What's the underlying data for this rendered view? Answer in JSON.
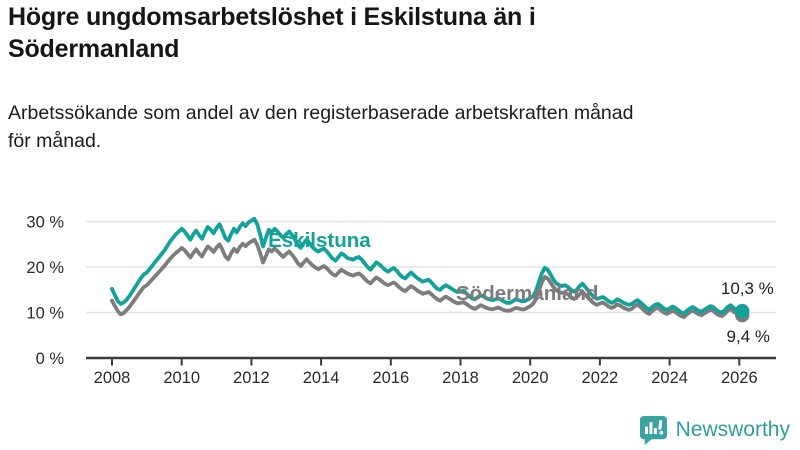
{
  "header": {
    "title": "Högre ungdomsarbetslöshet i Eskilstuna än i\nSödermanland",
    "subtitle": "Arbetssökande som andel av den registerbaserade arbetskraften månad\nför månad."
  },
  "chart_data": {
    "type": "line",
    "title": "Högre ungdomsarbetslöshet i Eskilstuna än i Södermanland",
    "subtitle": "Arbetssökande som andel av den registerbaserade arbetskraften månad för månad.",
    "unit": "%",
    "x_start_year": 2008,
    "x_interval_months": 1,
    "xlim": [
      2007.3,
      2027.1
    ],
    "ylim": [
      0,
      33
    ],
    "grid": true,
    "legend_position": "inline-labels",
    "y_ticks": [
      {
        "value": 0,
        "label": "0 %"
      },
      {
        "value": 10,
        "label": "10 %"
      },
      {
        "value": 20,
        "label": "20 %"
      },
      {
        "value": 30,
        "label": "30 %"
      }
    ],
    "x_ticks": [
      {
        "year": 2008,
        "label": "2008"
      },
      {
        "year": 2010,
        "label": "2010"
      },
      {
        "year": 2012,
        "label": "2012"
      },
      {
        "year": 2014,
        "label": "2014"
      },
      {
        "year": 2016,
        "label": "2016"
      },
      {
        "year": 2018,
        "label": "2018"
      },
      {
        "year": 2020,
        "label": "2020"
      },
      {
        "year": 2022,
        "label": "2022"
      },
      {
        "year": 2024,
        "label": "2024"
      },
      {
        "year": 2026,
        "label": "2026"
      }
    ],
    "series": [
      {
        "name": "Södermanland",
        "color": "#7d7d7d",
        "end_value": 9.4,
        "end_label": "9,4 %",
        "values": [
          12.6,
          11.4,
          10.3,
          9.6,
          9.9,
          10.5,
          11.2,
          12.1,
          13.0,
          13.9,
          14.8,
          15.6,
          16.0,
          16.7,
          17.4,
          18.1,
          18.8,
          19.5,
          20.2,
          21.0,
          21.8,
          22.5,
          23.1,
          23.6,
          24.2,
          23.7,
          22.9,
          22.1,
          23.1,
          23.9,
          23.0,
          22.3,
          23.5,
          24.5,
          24.0,
          23.3,
          24.3,
          25.0,
          23.8,
          22.3,
          21.7,
          23.0,
          24.0,
          23.3,
          24.4,
          25.1,
          24.6,
          25.2,
          25.6,
          26.0,
          24.9,
          23.1,
          21.0,
          22.4,
          23.9,
          23.4,
          24.1,
          23.5,
          22.8,
          22.2,
          22.9,
          23.4,
          22.7,
          21.8,
          20.8,
          20.2,
          21.0,
          21.7,
          21.0,
          20.4,
          19.9,
          19.5,
          19.9,
          20.2,
          19.7,
          19.0,
          18.4,
          18.1,
          18.8,
          19.4,
          19.0,
          18.6,
          18.3,
          18.1,
          18.4,
          18.6,
          18.1,
          17.4,
          16.8,
          16.4,
          17.1,
          17.7,
          17.3,
          16.8,
          16.3,
          16.0,
          16.3,
          16.6,
          16.1,
          15.5,
          15.0,
          14.7,
          15.3,
          15.8,
          15.4,
          14.9,
          14.5,
          14.1,
          14.3,
          14.5,
          14.0,
          13.4,
          12.9,
          12.6,
          13.1,
          13.5,
          13.1,
          12.7,
          12.3,
          12.0,
          12.1,
          12.3,
          11.9,
          11.4,
          11.0,
          10.8,
          11.2,
          11.6,
          11.3,
          11.0,
          10.8,
          10.7,
          10.9,
          11.1,
          10.8,
          10.5,
          10.4,
          10.4,
          10.7,
          11.0,
          10.9,
          10.7,
          10.7,
          11.0,
          11.4,
          11.9,
          13.0,
          14.8,
          16.6,
          17.8,
          17.5,
          16.6,
          15.6,
          14.9,
          14.5,
          14.3,
          14.4,
          14.0,
          13.4,
          13.0,
          13.3,
          14.0,
          14.5,
          13.9,
          13.2,
          12.5,
          12.0,
          11.7,
          12.0,
          12.2,
          11.8,
          11.3,
          11.0,
          11.3,
          11.8,
          11.5,
          11.1,
          10.8,
          10.6,
          10.8,
          11.4,
          11.7,
          11.2,
          10.6,
          10.0,
          9.7,
          10.3,
          10.8,
          11.0,
          10.5,
          10.0,
          9.7,
          10.0,
          10.4,
          10.1,
          9.6,
          9.2,
          9.0,
          9.6,
          10.1,
          10.4,
          10.0,
          9.6,
          9.4,
          9.8,
          10.2,
          10.6,
          10.4,
          9.8,
          9.4,
          9.2,
          9.7,
          10.4,
          10.8,
          10.2,
          9.8,
          9.6,
          9.4
        ]
      },
      {
        "name": "Eskilstuna",
        "color": "#12a29a",
        "end_value": 10.3,
        "end_label": "10,3 %",
        "values": [
          15.2,
          13.8,
          12.5,
          11.9,
          12.2,
          12.8,
          13.6,
          14.6,
          15.6,
          16.6,
          17.6,
          18.4,
          18.8,
          19.6,
          20.4,
          21.2,
          22.0,
          22.8,
          23.6,
          24.6,
          25.6,
          26.4,
          27.2,
          27.8,
          28.4,
          27.8,
          26.9,
          26.0,
          27.2,
          28.0,
          27.0,
          26.2,
          27.6,
          28.8,
          28.2,
          27.4,
          28.6,
          29.4,
          28.0,
          26.4,
          25.8,
          27.2,
          28.4,
          27.6,
          28.8,
          29.6,
          29.0,
          29.8,
          30.2,
          30.6,
          29.4,
          27.2,
          24.5,
          26.4,
          28.2,
          27.6,
          28.4,
          27.8,
          27.0,
          26.4,
          27.2,
          27.8,
          27.0,
          26.0,
          24.8,
          24.2,
          25.2,
          26.0,
          25.2,
          24.4,
          23.8,
          23.4,
          23.8,
          24.0,
          23.4,
          22.6,
          21.8,
          21.4,
          22.2,
          23.0,
          22.6,
          22.0,
          21.8,
          21.6,
          22.0,
          22.2,
          21.6,
          20.8,
          20.0,
          19.4,
          20.2,
          21.0,
          20.6,
          20.0,
          19.4,
          19.0,
          19.4,
          19.8,
          19.2,
          18.4,
          17.8,
          17.5,
          18.2,
          18.8,
          18.2,
          17.6,
          17.2,
          16.8,
          17.0,
          17.2,
          16.6,
          15.8,
          15.2,
          15.0,
          15.6,
          16.0,
          15.6,
          15.2,
          14.8,
          14.5,
          14.6,
          14.8,
          14.2,
          13.6,
          13.1,
          12.9,
          13.4,
          13.8,
          13.5,
          13.1,
          12.9,
          12.7,
          12.9,
          13.1,
          12.8,
          12.4,
          12.1,
          12.1,
          12.5,
          12.9,
          12.7,
          12.5,
          12.5,
          12.8,
          13.2,
          13.6,
          14.8,
          16.8,
          18.6,
          19.8,
          19.4,
          18.4,
          17.2,
          16.4,
          16.0,
          15.8,
          16.0,
          15.6,
          15.0,
          14.6,
          15.0,
          15.8,
          16.3,
          15.6,
          14.8,
          14.0,
          13.4,
          13.0,
          13.2,
          13.4,
          13.0,
          12.5,
          12.1,
          12.4,
          12.9,
          12.6,
          12.2,
          11.9,
          11.7,
          11.9,
          12.4,
          12.7,
          12.2,
          11.6,
          11.0,
          10.6,
          11.2,
          11.7,
          11.9,
          11.4,
          10.9,
          10.6,
          10.9,
          11.3,
          11.0,
          10.5,
          10.0,
          9.8,
          10.4,
          10.9,
          11.2,
          10.8,
          10.4,
          10.2,
          10.6,
          11.0,
          11.4,
          11.2,
          10.6,
          10.2,
          10.0,
          10.5,
          11.2,
          11.6,
          11.0,
          10.6,
          10.4,
          10.3
        ]
      }
    ],
    "annotations": [
      {
        "text": "Eskilstuna",
        "year": 2012.48,
        "value": 24.4,
        "color": "#12a29a",
        "role": "series-label",
        "anchor": "start"
      },
      {
        "text": "Södermanland",
        "year": 2017.87,
        "value": 12.7,
        "color": "#7c7c7c",
        "role": "series-label",
        "anchor": "start"
      },
      {
        "text": "10,3 %",
        "year": 2026.99,
        "value": 14.1,
        "color": "#222222",
        "role": "value-label",
        "anchor": "end"
      },
      {
        "text": "9,4 %",
        "year": 2026.88,
        "value": 3.5,
        "color": "#222222",
        "role": "value-label",
        "anchor": "end"
      }
    ]
  },
  "footer": {
    "brand": "Newsworthy",
    "brand_color": "#2f9e9b",
    "logo_icon": "speech-bubble-bar-chart-icon"
  }
}
